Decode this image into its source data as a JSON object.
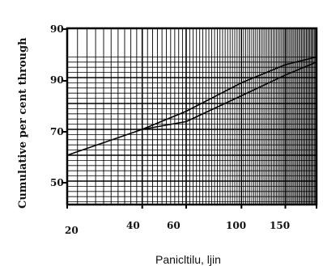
{
  "chart_data": {
    "type": "line",
    "title": "",
    "xlabel": "Panicltilu, lјin",
    "ylabel": "Cumulative per cent through",
    "x_ticks": [
      "20",
      "40",
      "60",
      "100",
      "150"
    ],
    "y_ticks": [
      "90",
      "90",
      "70",
      "50"
    ],
    "grid": true,
    "series": [
      {
        "points": [
          [
            20,
            60
          ],
          [
            40,
            70
          ],
          [
            60,
            77
          ],
          [
            100,
            88
          ],
          [
            150,
            95
          ],
          [
            200,
            98
          ]
        ]
      },
      {
        "points": [
          [
            40,
            70
          ],
          [
            60,
            73
          ],
          [
            100,
            83
          ],
          [
            150,
            91
          ],
          [
            200,
            96
          ]
        ]
      }
    ]
  }
}
